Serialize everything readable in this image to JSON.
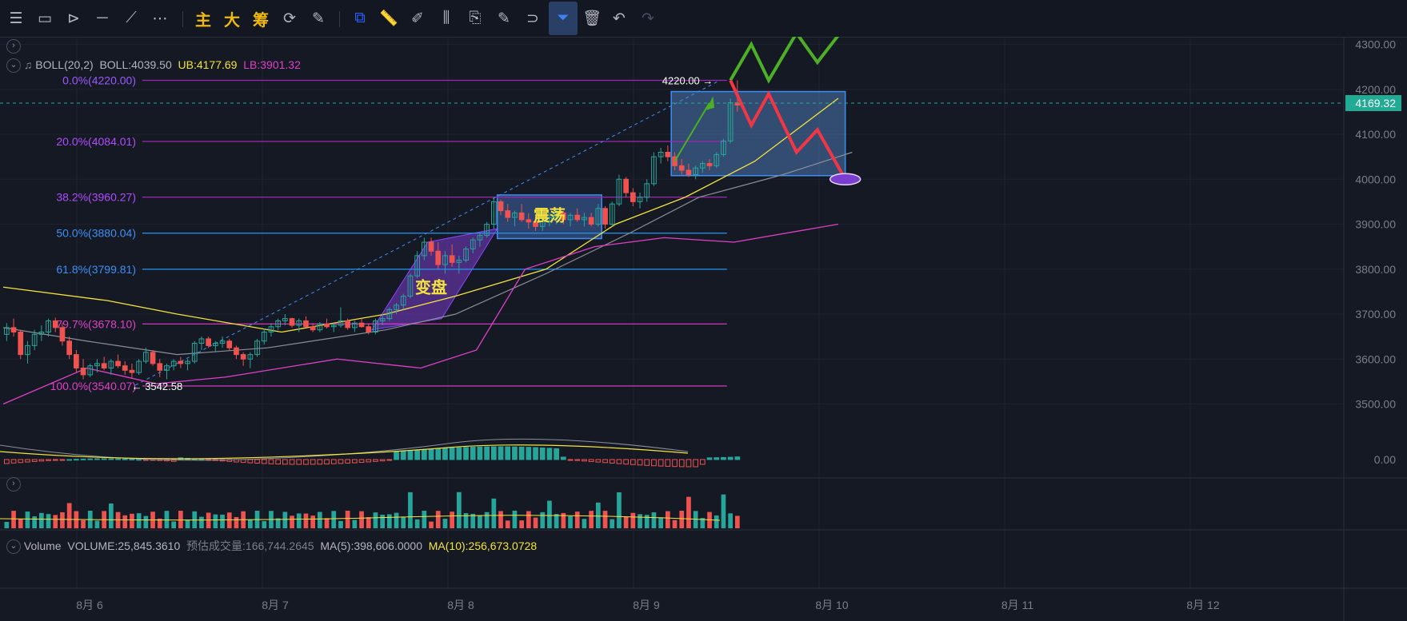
{
  "toolbar": {
    "menu_icon": "menu-icon",
    "cn_main": "主",
    "cn_big": "大",
    "cn_chip": "筹"
  },
  "indicators": {
    "boll": {
      "name": "BOLL(20,2)",
      "mid": "BOLL:4039.50",
      "ub": "UB:4177.69",
      "lb": "LB:3901.32"
    },
    "volume": {
      "name": "Volume",
      "vol": "VOLUME:25,845.3610",
      "est": "预估成交量:166,744.2645",
      "ma5": "MA(5):398,606.0000",
      "ma10": "MA(10):256,673.0728"
    }
  },
  "colors": {
    "up": "#26a69a",
    "down": "#ef5350",
    "upper_band": "#f5e33d",
    "mid_band": "#8a8f99",
    "lower_band": "#e040c8",
    "fib_purple": "#9c27b0",
    "fib_blue": "#2196f3",
    "fib_pink": "#e040c8",
    "green_path": "#4caf26",
    "red_path": "#f23645",
    "accent": "#22ab94"
  },
  "chart_data": {
    "type": "candlestick",
    "y_axis": {
      "ticks": [
        "4300.00",
        "4200.00",
        "4100.00",
        "4000.00",
        "3900.00",
        "3800.00",
        "3700.00",
        "3600.00",
        "3500.00"
      ],
      "range": [
        3400,
        4340
      ],
      "current_price": "4169.32"
    },
    "macd_axis": {
      "ticks": [
        "0.00"
      ]
    },
    "x_axis": {
      "ticks": [
        "8月 6",
        "8月 7",
        "8月 8",
        "8月 9",
        "8月 10",
        "8月 11",
        "8月 12"
      ]
    },
    "fib_levels": [
      {
        "label": "0.0%(4220.00)",
        "value": 4220.0
      },
      {
        "label": "20.0%(4084.01)",
        "value": 4084.01
      },
      {
        "label": "38.2%(3960.27)",
        "value": 3960.27
      },
      {
        "label": "50.0%(3880.04)",
        "value": 3880.04
      },
      {
        "label": "61.8%(3799.81)",
        "value": 3799.81
      },
      {
        "label": "79.7%(3678.10)",
        "value": 3678.1
      },
      {
        "label": "100.0%(3540.07)",
        "value": 3540.07
      }
    ],
    "high_label": "4220.00",
    "low_label": "3542.58",
    "annotations": {
      "box_consolidation": "震荡",
      "box_turn": "变盘"
    },
    "candles": [
      [
        3655,
        3680,
        3640,
        3670
      ],
      [
        3670,
        3690,
        3650,
        3660
      ],
      [
        3660,
        3665,
        3600,
        3610
      ],
      [
        3610,
        3640,
        3590,
        3630
      ],
      [
        3630,
        3665,
        3620,
        3655
      ],
      [
        3655,
        3675,
        3640,
        3660
      ],
      [
        3660,
        3690,
        3650,
        3685
      ],
      [
        3685,
        3692,
        3660,
        3670
      ],
      [
        3670,
        3680,
        3630,
        3640
      ],
      [
        3640,
        3650,
        3600,
        3610
      ],
      [
        3610,
        3620,
        3570,
        3580
      ],
      [
        3580,
        3600,
        3555,
        3565
      ],
      [
        3565,
        3590,
        3560,
        3585
      ],
      [
        3585,
        3600,
        3570,
        3590
      ],
      [
        3590,
        3605,
        3575,
        3580
      ],
      [
        3580,
        3600,
        3565,
        3595
      ],
      [
        3595,
        3610,
        3580,
        3585
      ],
      [
        3585,
        3595,
        3565,
        3575
      ],
      [
        3575,
        3590,
        3558,
        3570
      ],
      [
        3570,
        3600,
        3565,
        3595
      ],
      [
        3595,
        3625,
        3590,
        3615
      ],
      [
        3615,
        3620,
        3585,
        3590
      ],
      [
        3590,
        3600,
        3560,
        3575
      ],
      [
        3575,
        3590,
        3555,
        3585
      ],
      [
        3585,
        3600,
        3575,
        3595
      ],
      [
        3595,
        3605,
        3580,
        3590
      ],
      [
        3590,
        3600,
        3575,
        3595
      ],
      [
        3595,
        3640,
        3590,
        3635
      ],
      [
        3635,
        3650,
        3620,
        3645
      ],
      [
        3645,
        3650,
        3625,
        3630
      ],
      [
        3630,
        3640,
        3615,
        3635
      ],
      [
        3635,
        3650,
        3625,
        3640
      ],
      [
        3640,
        3645,
        3620,
        3625
      ],
      [
        3625,
        3630,
        3600,
        3610
      ],
      [
        3610,
        3615,
        3585,
        3600
      ],
      [
        3600,
        3615,
        3580,
        3610
      ],
      [
        3610,
        3645,
        3605,
        3640
      ],
      [
        3640,
        3668,
        3632,
        3660
      ],
      [
        3660,
        3680,
        3650,
        3672
      ],
      [
        3672,
        3690,
        3665,
        3685
      ],
      [
        3685,
        3700,
        3675,
        3690
      ],
      [
        3690,
        3692,
        3670,
        3675
      ],
      [
        3675,
        3690,
        3660,
        3685
      ],
      [
        3685,
        3695,
        3670,
        3672
      ],
      [
        3672,
        3680,
        3660,
        3665
      ],
      [
        3665,
        3682,
        3660,
        3678
      ],
      [
        3678,
        3690,
        3668,
        3672
      ],
      [
        3672,
        3680,
        3660,
        3675
      ],
      [
        3675,
        3715,
        3670,
        3685
      ],
      [
        3685,
        3690,
        3665,
        3670
      ],
      [
        3670,
        3685,
        3660,
        3680
      ],
      [
        3680,
        3690,
        3670,
        3672
      ],
      [
        3672,
        3680,
        3655,
        3660
      ],
      [
        3660,
        3690,
        3655,
        3685
      ],
      [
        3685,
        3700,
        3675,
        3690
      ],
      [
        3690,
        3715,
        3685,
        3710
      ],
      [
        3710,
        3725,
        3700,
        3720
      ],
      [
        3720,
        3745,
        3710,
        3740
      ],
      [
        3740,
        3790,
        3735,
        3785
      ],
      [
        3785,
        3840,
        3780,
        3830
      ],
      [
        3830,
        3870,
        3820,
        3860
      ],
      [
        3860,
        3870,
        3830,
        3840
      ],
      [
        3840,
        3860,
        3800,
        3810
      ],
      [
        3810,
        3840,
        3790,
        3830
      ],
      [
        3830,
        3855,
        3805,
        3815
      ],
      [
        3815,
        3830,
        3790,
        3820
      ],
      [
        3820,
        3850,
        3815,
        3845
      ],
      [
        3845,
        3870,
        3835,
        3865
      ],
      [
        3865,
        3880,
        3850,
        3875
      ],
      [
        3875,
        3905,
        3870,
        3900
      ],
      [
        3900,
        3960,
        3890,
        3950
      ],
      [
        3950,
        3955,
        3920,
        3930
      ],
      [
        3930,
        3945,
        3905,
        3915
      ],
      [
        3915,
        3930,
        3895,
        3925
      ],
      [
        3925,
        3945,
        3905,
        3910
      ],
      [
        3910,
        3925,
        3890,
        3905
      ],
      [
        3905,
        3915,
        3885,
        3895
      ],
      [
        3895,
        3910,
        3885,
        3905
      ],
      [
        3905,
        3925,
        3895,
        3915
      ],
      [
        3915,
        3935,
        3900,
        3925
      ],
      [
        3925,
        3930,
        3900,
        3910
      ],
      [
        3910,
        3925,
        3895,
        3920
      ],
      [
        3920,
        3935,
        3905,
        3910
      ],
      [
        3910,
        3925,
        3895,
        3915
      ],
      [
        3915,
        3925,
        3895,
        3900
      ],
      [
        3900,
        3945,
        3895,
        3935
      ],
      [
        3935,
        3940,
        3890,
        3900
      ],
      [
        3900,
        3950,
        3895,
        3945
      ],
      [
        3945,
        4010,
        3940,
        4000
      ],
      [
        4000,
        4005,
        3960,
        3970
      ],
      [
        3970,
        3980,
        3940,
        3950
      ],
      [
        3950,
        3970,
        3935,
        3960
      ],
      [
        3960,
        4000,
        3950,
        3990
      ],
      [
        3990,
        4060,
        3985,
        4050
      ],
      [
        4050,
        4070,
        4035,
        4060
      ],
      [
        4060,
        4075,
        4040,
        4050
      ],
      [
        4050,
        4060,
        4020,
        4030
      ],
      [
        4030,
        4045,
        4010,
        4020
      ],
      [
        4020,
        4035,
        4005,
        4010
      ],
      [
        4010,
        4030,
        4000,
        4025
      ],
      [
        4025,
        4040,
        4015,
        4035
      ],
      [
        4035,
        4045,
        4020,
        4030
      ],
      [
        4030,
        4060,
        4025,
        4055
      ],
      [
        4055,
        4090,
        4050,
        4085
      ],
      [
        4085,
        4180,
        4080,
        4170
      ],
      [
        4170,
        4220,
        4150,
        4165
      ]
    ],
    "upper_band": [
      [
        0,
        3760
      ],
      [
        15,
        3730
      ],
      [
        25,
        3700
      ],
      [
        40,
        3660
      ],
      [
        55,
        3700
      ],
      [
        65,
        3740
      ],
      [
        78,
        3800
      ],
      [
        88,
        3900
      ],
      [
        98,
        3960
      ],
      [
        108,
        4040
      ],
      [
        120,
        4180
      ]
    ],
    "mid_band": [
      [
        0,
        3670
      ],
      [
        12,
        3640
      ],
      [
        25,
        3610
      ],
      [
        38,
        3625
      ],
      [
        55,
        3665
      ],
      [
        65,
        3700
      ],
      [
        78,
        3790
      ],
      [
        90,
        3880
      ],
      [
        100,
        3960
      ],
      [
        112,
        4010
      ],
      [
        122,
        4060
      ]
    ],
    "lower_band": [
      [
        0,
        3500
      ],
      [
        12,
        3580
      ],
      [
        22,
        3545
      ],
      [
        32,
        3560
      ],
      [
        48,
        3600
      ],
      [
        60,
        3580
      ],
      [
        68,
        3620
      ],
      [
        75,
        3800
      ],
      [
        85,
        3850
      ],
      [
        95,
        3870
      ],
      [
        105,
        3860
      ],
      [
        120,
        3900
      ]
    ],
    "projection_up": [
      "4220",
      "4300",
      "4220",
      "4325",
      "4260",
      "4340"
    ],
    "projection_down": [
      "4220",
      "4120",
      "4190",
      "4060",
      "4110",
      "4000"
    ]
  }
}
